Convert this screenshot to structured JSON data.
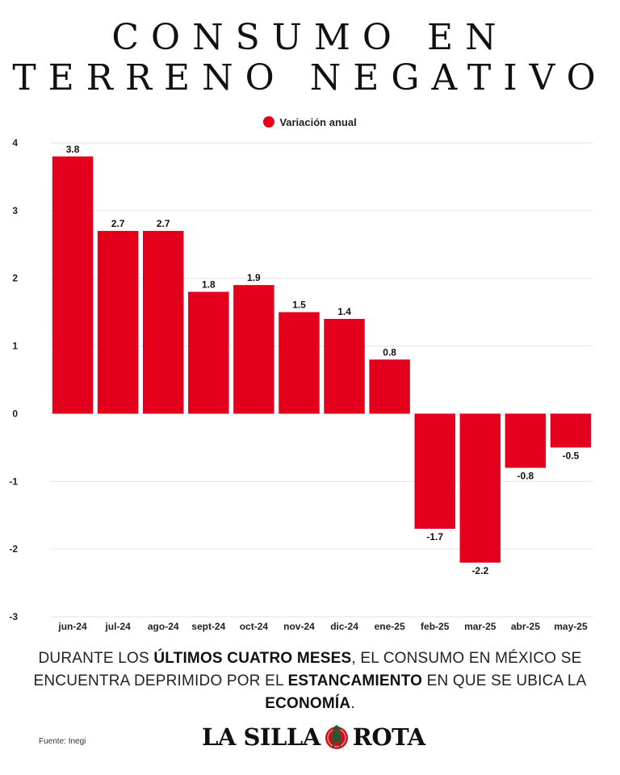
{
  "title": {
    "line1": "CONSUMO EN",
    "line2": "TERRENO NEGATIVO"
  },
  "colors": {
    "bar": "#e4001d",
    "grid": "#e6e6e6",
    "text": "#111111"
  },
  "chart_data": {
    "type": "bar",
    "categories": [
      "jun-24",
      "jul-24",
      "ago-24",
      "sept-24",
      "oct-24",
      "nov-24",
      "dic-24",
      "ene-25",
      "feb-25",
      "mar-25",
      "abr-25",
      "may-25"
    ],
    "series": [
      {
        "name": "Variación anual",
        "values": [
          3.8,
          2.7,
          2.7,
          1.8,
          1.9,
          1.5,
          1.4,
          0.8,
          -1.7,
          -2.2,
          -0.8,
          -0.5
        ]
      }
    ],
    "data_labels": [
      "3.8",
      "2.7",
      "2.7",
      "1.8",
      "1.9",
      "1.5",
      "1.4",
      "0.8",
      "-1.7",
      "-2.2",
      "-0.8",
      "-0.5"
    ],
    "y_ticks": [
      "4",
      "3",
      "2",
      "1",
      "0",
      "-1",
      "-2",
      "-3"
    ],
    "ylim": [
      -3,
      4
    ],
    "legend_position": "top-center",
    "grid": true
  },
  "caption": {
    "p1": "DURANTE LOS ",
    "b1": "ÚLTIMOS CUATRO MESES",
    "p2": ", EL CONSUMO EN MÉXICO SE ENCUENTRA DEPRIMIDO POR EL ",
    "b2": "ESTANCAMIENTO",
    "p3": " EN QUE SE UBICA LA ",
    "b3": "ECONOMÍA",
    "p4": "."
  },
  "source": "Fuente: Inegi",
  "logo": {
    "left": "LA SILLA",
    "right": "ROTA",
    "emblem_icon": "chair-emblem-icon"
  }
}
